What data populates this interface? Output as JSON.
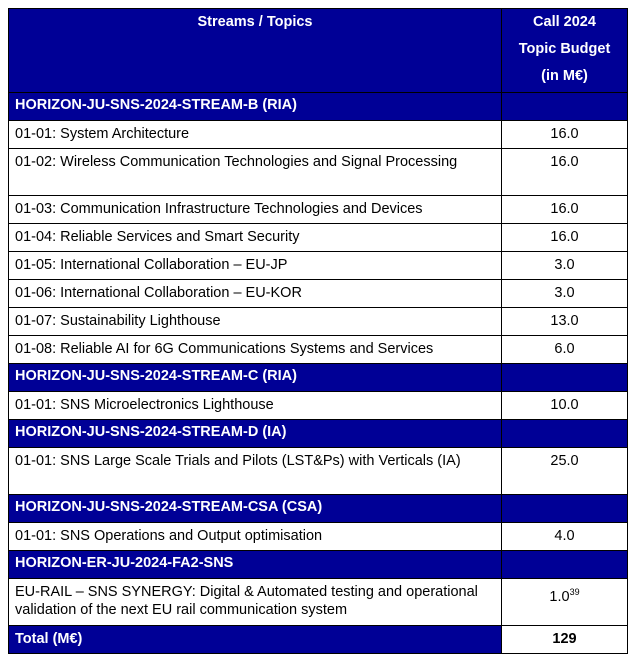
{
  "table": {
    "header": {
      "topic": "Streams / Topics",
      "budget": [
        "Call 2024",
        "Topic Budget",
        "(in M€)"
      ]
    },
    "sections": [
      {
        "title": "HORIZON-JU-SNS-2024-STREAM-B (RIA)",
        "rows": [
          {
            "topic": "01-01: System Architecture",
            "budget": "16.0"
          },
          {
            "topic": "01-02: Wireless Communication Technologies and Signal Processing",
            "budget": "16.0"
          },
          {
            "topic": "01-03: Communication Infrastructure Technologies and Devices",
            "budget": "16.0"
          },
          {
            "topic": "01-04: Reliable Services and Smart Security",
            "budget": "16.0"
          },
          {
            "topic": "01-05: International Collaboration – EU-JP",
            "budget": "3.0"
          },
          {
            "topic": "01-06: International Collaboration – EU-KOR",
            "budget": "3.0"
          },
          {
            "topic": "01-07: Sustainability Lighthouse",
            "budget": "13.0"
          },
          {
            "topic": "01-08: Reliable AI for 6G Communications Systems and Services",
            "budget": "6.0"
          }
        ]
      },
      {
        "title": "HORIZON-JU-SNS-2024-STREAM-C (RIA)",
        "rows": [
          {
            "topic": "01-01: SNS Microelectronics Lighthouse",
            "budget": "10.0"
          }
        ]
      },
      {
        "title": "HORIZON-JU-SNS-2024-STREAM-D (IA)",
        "rows": [
          {
            "topic": "01-01: SNS Large Scale Trials and Pilots (LST&Ps) with Verticals (IA)",
            "budget": "25.0"
          }
        ]
      },
      {
        "title": "HORIZON-JU-SNS-2024-STREAM-CSA (CSA)",
        "rows": [
          {
            "topic": "01-01: SNS Operations and Output optimisation",
            "budget": "4.0"
          }
        ]
      },
      {
        "title": "HORIZON-ER-JU-2024-FA2-SNS",
        "rows": [
          {
            "topic": "EU-RAIL – SNS SYNERGY: Digital & Automated testing and operational validation of the next EU rail communication system",
            "budget": "1.0",
            "footnote": "39"
          }
        ]
      }
    ],
    "total": {
      "label": "Total (M€)",
      "budget": "129"
    }
  }
}
